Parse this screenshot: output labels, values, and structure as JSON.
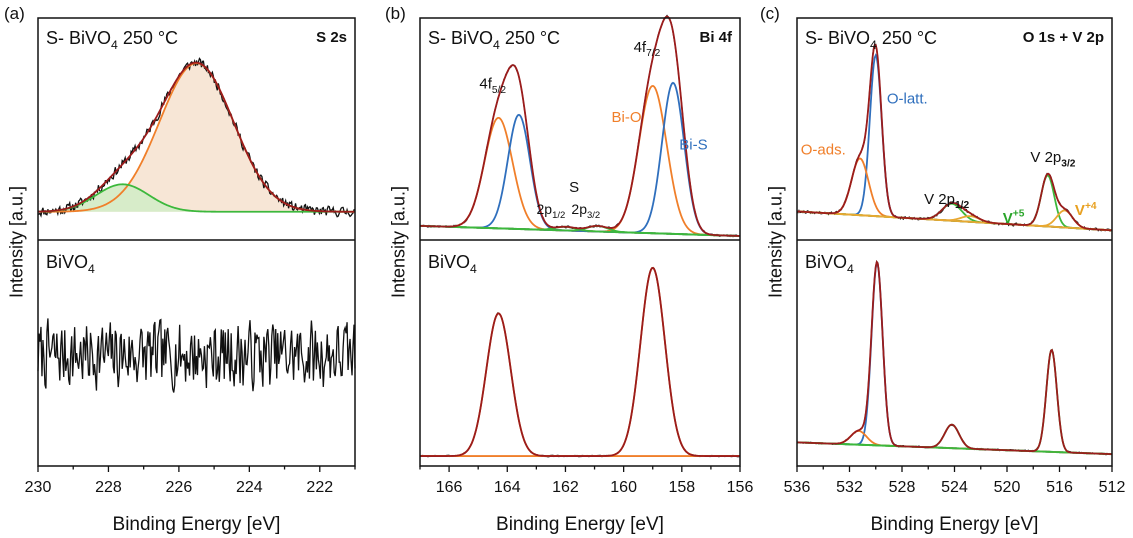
{
  "colors": {
    "raw": "#111111",
    "envelope": "#9b1c1c",
    "orange": "#f07f2a",
    "blue": "#2f6fbd",
    "green": "#3cb83c",
    "yellow": "#e8a832",
    "fill_orange": "#f7e6d6",
    "fill_green": "#d7ecc9",
    "label_orange": "#f07f2a",
    "label_blue": "#2f6fbd",
    "label_green": "#2aa52a",
    "label_yellow": "#e8a020"
  },
  "chart_data": [
    {
      "panel_label": "(a)",
      "type": "line",
      "xlabel": "Binding Energy [eV]",
      "ylabel": "Intensity [a.u.]",
      "xlim": [
        230,
        221
      ],
      "xticks": [
        "230",
        "228",
        "226",
        "224",
        "222"
      ],
      "xtick_values": [
        230,
        228,
        226,
        224,
        222
      ],
      "top_title": {
        "prefix": "S- BiVO",
        "sub": "4",
        "suffix": " 250 °C"
      },
      "top_tag": "S 2s",
      "bottom_title": {
        "prefix": "BiVO",
        "sub": "4"
      },
      "top": {
        "noise_seed": 11,
        "noise": 0.035,
        "baseline": 0.0,
        "range": [
          -0.15,
          1.15
        ],
        "components": [
          {
            "name": "S 2s",
            "center": 225.5,
            "sigma": 1.05,
            "height": 0.92,
            "color": "orange",
            "fill": "fill_orange"
          },
          {
            "name": "",
            "center": 227.6,
            "sigma": 0.75,
            "height": 0.17,
            "color": "green",
            "fill": "fill_green"
          }
        ]
      },
      "bottom": {
        "noise_seed": 7,
        "noise": 0.18,
        "baseline": 0.5,
        "range": [
          0,
          1
        ],
        "components": []
      },
      "annotations": []
    },
    {
      "panel_label": "(b)",
      "type": "line",
      "xlabel": "Binding Energy [eV]",
      "ylabel": "Intensity [a.u.]",
      "xlim": [
        167,
        156
      ],
      "xticks": [
        "166",
        "164",
        "162",
        "160",
        "158",
        "156"
      ],
      "xtick_values": [
        166,
        164,
        162,
        160,
        158,
        156
      ],
      "top_title": {
        "prefix": "S- BiVO",
        "sub": "4",
        "suffix": " 250 °C"
      },
      "top_tag": "Bi 4f",
      "bottom_title": {
        "prefix": "BiVO",
        "sub": "4"
      },
      "top": {
        "noise_seed": 5,
        "noise": 0.006,
        "baseline": 0.0,
        "range": [
          -0.02,
          1.12
        ],
        "background": {
          "start": 0.035,
          "end": -0.02,
          "color": "green"
        },
        "components": [
          {
            "name": "4f5/2 Bi-O",
            "center": 164.3,
            "sigma": 0.48,
            "height": 0.6,
            "color": "orange"
          },
          {
            "name": "4f5/2 Bi-S",
            "center": 163.6,
            "sigma": 0.38,
            "height": 0.62,
            "color": "blue"
          },
          {
            "name": "4f7/2 Bi-O",
            "center": 159.0,
            "sigma": 0.48,
            "height": 0.8,
            "color": "orange"
          },
          {
            "name": "4f7/2 Bi-S",
            "center": 158.3,
            "sigma": 0.38,
            "height": 0.82,
            "color": "blue"
          },
          {
            "name": "S 2p1/2",
            "center": 162.0,
            "sigma": 0.35,
            "height": 0.02,
            "color": "green"
          },
          {
            "name": "S 2p3/2",
            "center": 160.9,
            "sigma": 0.35,
            "height": 0.03,
            "color": "green"
          }
        ]
      },
      "bottom": {
        "noise_seed": 3,
        "noise": 0.004,
        "baseline": 0.0,
        "range": [
          -0.03,
          1.05
        ],
        "components": [
          {
            "name": "Bi 4f5/2",
            "center": 164.3,
            "sigma": 0.42,
            "height": 0.72,
            "color": "orange"
          },
          {
            "name": "Bi 4f7/2",
            "center": 159.0,
            "sigma": 0.42,
            "height": 0.95,
            "color": "orange"
          }
        ]
      },
      "annotations": [
        {
          "text": "4f",
          "sub": "5/2",
          "x": 164.5,
          "y": 0.78,
          "color": "raw",
          "size": 15
        },
        {
          "text": "4f",
          "sub": "7/2",
          "x": 159.2,
          "y": 0.98,
          "color": "raw",
          "size": 15
        },
        {
          "text": "Bi-O",
          "sub": "",
          "x": 159.9,
          "y": 0.6,
          "color": "label_orange",
          "size": 15
        },
        {
          "text": "Bi-S",
          "sub": "",
          "x": 157.6,
          "y": 0.45,
          "color": "label_blue",
          "size": 15
        },
        {
          "text": "S",
          "sub": "",
          "x": 161.7,
          "y": 0.22,
          "color": "raw",
          "size": 15
        },
        {
          "text": "2p",
          "sub": "1/2",
          "x": 162.5,
          "y": 0.1,
          "color": "raw",
          "size": 14
        },
        {
          "text": "2p",
          "sub": "3/2",
          "x": 161.3,
          "y": 0.1,
          "color": "raw",
          "size": 14
        }
      ]
    },
    {
      "panel_label": "(c)",
      "type": "line",
      "xlabel": "Binding Energy [eV]",
      "ylabel": "Intensity [a.u.]",
      "xlim": [
        536,
        512
      ],
      "xticks": [
        "536",
        "532",
        "528",
        "524",
        "520",
        "516",
        "512"
      ],
      "xtick_values": [
        536,
        532,
        528,
        524,
        520,
        516,
        512
      ],
      "top_title": {
        "prefix": "S- BiVO",
        "sub": "4",
        "suffix": " 250 °C"
      },
      "top_tag": "O 1s + V 2p",
      "bottom_title": {
        "prefix": "BiVO",
        "sub": "4"
      },
      "top": {
        "noise_seed": 9,
        "noise": 0.008,
        "baseline": 0.0,
        "range": [
          -0.03,
          1.08
        ],
        "background": {
          "start": 0.1,
          "end": 0.0,
          "color": "yellow"
        },
        "components": [
          {
            "name": "O-latt.",
            "center": 530.0,
            "sigma": 0.45,
            "height": 0.85,
            "color": "blue"
          },
          {
            "name": "O-ads.",
            "center": 531.2,
            "sigma": 0.65,
            "height": 0.3,
            "color": "orange"
          },
          {
            "name": "V 2p1/2",
            "center": 524.2,
            "sigma": 0.75,
            "height": 0.09,
            "color": "green"
          },
          {
            "name": "V 2p3/2 V+5",
            "center": 516.9,
            "sigma": 0.5,
            "height": 0.27,
            "color": "green"
          },
          {
            "name": "V 2p3/2 V+4",
            "center": 515.6,
            "sigma": 0.6,
            "height": 0.09,
            "color": "yellow"
          },
          {
            "name": "V 2p1/2 V+4",
            "center": 522.8,
            "sigma": 0.7,
            "height": 0.03,
            "color": "yellow"
          }
        ]
      },
      "bottom": {
        "noise_seed": 4,
        "noise": 0.004,
        "baseline": 0.0,
        "range": [
          -0.04,
          1.05
        ],
        "background": {
          "start": 0.06,
          "end": 0.0,
          "color": "green"
        },
        "components": [
          {
            "name": "O-latt.",
            "center": 529.9,
            "sigma": 0.42,
            "height": 0.93,
            "color": "blue"
          },
          {
            "name": "O-ads.",
            "center": 531.3,
            "sigma": 0.6,
            "height": 0.07,
            "color": "orange"
          },
          {
            "name": "V 2p1/2",
            "center": 524.2,
            "sigma": 0.55,
            "height": 0.12,
            "color": "green"
          },
          {
            "name": "V 2p3/2",
            "center": 516.6,
            "sigma": 0.4,
            "height": 0.52,
            "color": "green"
          }
        ]
      },
      "annotations": [
        {
          "text": "O-ads.",
          "sub": "",
          "x": 534.0,
          "y": 0.4,
          "color": "label_orange",
          "size": 15
        },
        {
          "text": "O-latt.",
          "sub": "",
          "x": 527.6,
          "y": 0.67,
          "color": "label_blue",
          "size": 15
        },
        {
          "text": "V 2p",
          "sub": "1/2",
          "x": 524.6,
          "y": 0.14,
          "color": "raw",
          "size": 15,
          "bold_sub": true
        },
        {
          "text": "V 2p",
          "sub": "3/2",
          "x": 516.5,
          "y": 0.36,
          "color": "raw",
          "size": 15,
          "bold_sub": true
        },
        {
          "text": "V",
          "sup": "+5",
          "x": 519.5,
          "y": 0.04,
          "color": "label_green",
          "size": 15,
          "bold": true
        },
        {
          "text": "V",
          "sup": "+4",
          "x": 514.0,
          "y": 0.08,
          "color": "label_yellow",
          "size": 15,
          "bold": true
        }
      ]
    }
  ]
}
